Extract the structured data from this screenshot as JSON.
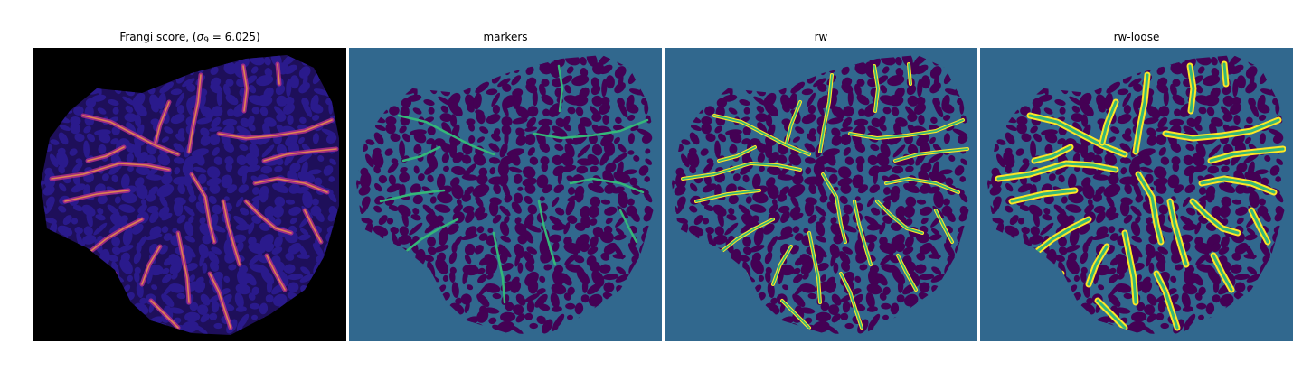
{
  "figure": {
    "panels": [
      {
        "key": "frangi",
        "title_prefix": "Frangi score, (",
        "title_sigma": "σ",
        "title_sub": "9",
        "title_suffix": " = 6.025)",
        "colormap": "magma",
        "colors": {
          "background": "#000000",
          "blob": "#2a1a8c",
          "vessel": "#b2308a",
          "bright": "#fba73a"
        }
      },
      {
        "key": "markers",
        "title": "markers",
        "colormap": "viridis",
        "colors": {
          "background": "#31688e",
          "blob": "#440154",
          "marker": "#35b779"
        }
      },
      {
        "key": "rw",
        "title": "rw",
        "colormap": "viridis",
        "colors": {
          "background": "#31688e",
          "blob": "#440154",
          "vessel": "#fde725",
          "core": "#35b779"
        }
      },
      {
        "key": "rw_loose",
        "title": "rw-loose",
        "colormap": "viridis",
        "colors": {
          "background": "#31688e",
          "blob": "#440154",
          "vessel": "#fde725",
          "core": "#35b779"
        }
      }
    ]
  }
}
